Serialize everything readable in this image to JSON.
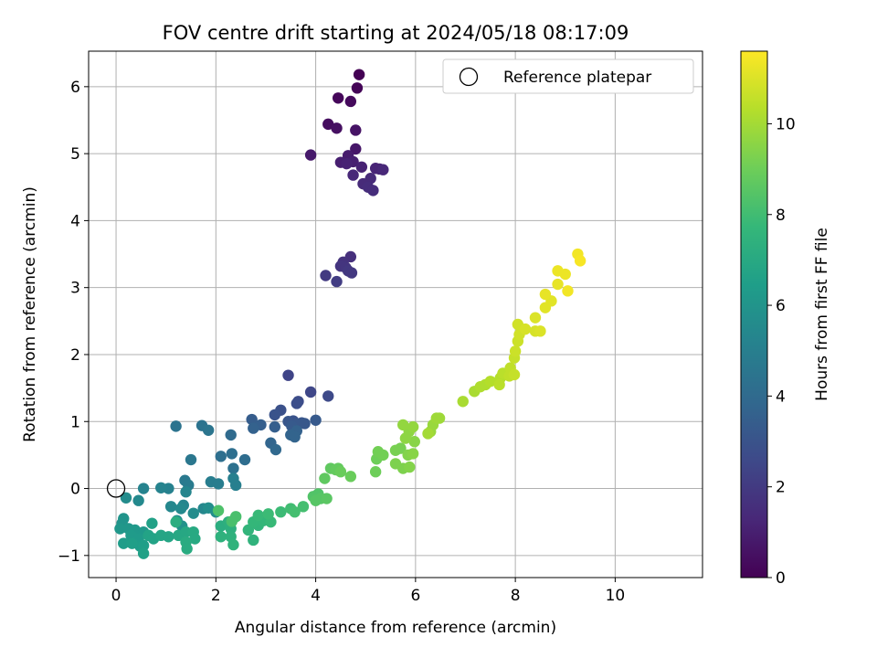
{
  "chart_data": {
    "type": "scatter",
    "title": "FOV centre drift starting at 2024/05/18 08:17:09",
    "xlabel": "Angular distance from reference (arcmin)",
    "ylabel": "Rotation from reference (arcmin)",
    "xlim": [
      -0.55,
      11.75
    ],
    "ylim": [
      -1.33,
      6.53
    ],
    "xticks": [
      0,
      2,
      4,
      6,
      8,
      10
    ],
    "yticks": [
      -1,
      0,
      1,
      2,
      3,
      4,
      5,
      6
    ],
    "grid": true,
    "legend": {
      "location": "upper right",
      "entries": [
        {
          "label": "Reference platepar",
          "marker": "open-circle"
        }
      ]
    },
    "reference_point": {
      "x": 0,
      "y": 0
    },
    "colorbar": {
      "label": "Hours from first FF file",
      "range": [
        0,
        11.6
      ],
      "ticks": [
        0,
        2,
        4,
        6,
        8,
        10
      ],
      "colormap": "viridis",
      "stops": [
        "#440154",
        "#482878",
        "#3e4989",
        "#31688e",
        "#26828e",
        "#1f9e89",
        "#35b779",
        "#6ece58",
        "#b5de2b",
        "#fde725"
      ]
    },
    "points": [
      [
        4.87,
        6.18,
        0.0
      ],
      [
        4.83,
        5.98,
        0.1
      ],
      [
        4.45,
        5.83,
        0.2
      ],
      [
        4.7,
        5.78,
        0.3
      ],
      [
        4.25,
        5.44,
        0.4
      ],
      [
        4.42,
        5.38,
        0.5
      ],
      [
        4.8,
        5.35,
        0.6
      ],
      [
        4.8,
        5.07,
        0.7
      ],
      [
        3.9,
        4.98,
        0.8
      ],
      [
        4.65,
        4.97,
        0.9
      ],
      [
        4.75,
        4.88,
        1.0
      ],
      [
        4.5,
        4.87,
        1.0
      ],
      [
        4.62,
        4.85,
        1.1
      ],
      [
        4.92,
        4.8,
        1.1
      ],
      [
        5.2,
        4.78,
        1.2
      ],
      [
        5.28,
        4.77,
        1.2
      ],
      [
        5.35,
        4.76,
        1.3
      ],
      [
        4.75,
        4.68,
        1.3
      ],
      [
        5.1,
        4.63,
        1.4
      ],
      [
        4.95,
        4.55,
        1.4
      ],
      [
        5.05,
        4.5,
        1.5
      ],
      [
        5.15,
        4.45,
        1.5
      ],
      [
        4.7,
        3.46,
        1.6
      ],
      [
        4.55,
        3.38,
        1.7
      ],
      [
        4.5,
        3.32,
        1.8
      ],
      [
        4.6,
        3.3,
        1.8
      ],
      [
        4.65,
        3.25,
        1.9
      ],
      [
        4.72,
        3.22,
        1.9
      ],
      [
        4.2,
        3.18,
        2.0
      ],
      [
        4.42,
        3.09,
        2.1
      ],
      [
        3.45,
        1.69,
        2.4
      ],
      [
        3.9,
        1.44,
        2.5
      ],
      [
        4.25,
        1.38,
        2.6
      ],
      [
        3.65,
        1.3,
        2.7
      ],
      [
        3.62,
        1.27,
        2.8
      ],
      [
        3.3,
        1.17,
        2.9
      ],
      [
        3.18,
        1.1,
        3.0
      ],
      [
        3.55,
        1.01,
        3.0
      ],
      [
        3.45,
        1.0,
        3.1
      ],
      [
        3.72,
        0.98,
        3.1
      ],
      [
        3.62,
        0.96,
        3.2
      ],
      [
        3.78,
        0.97,
        3.2
      ],
      [
        3.52,
        0.93,
        3.3
      ],
      [
        4.0,
        1.02,
        3.3
      ],
      [
        2.72,
        1.03,
        3.4
      ],
      [
        2.9,
        0.95,
        3.5
      ],
      [
        3.18,
        0.92,
        3.5
      ],
      [
        2.75,
        0.9,
        3.6
      ],
      [
        3.62,
        0.86,
        3.6
      ],
      [
        3.5,
        0.8,
        3.7
      ],
      [
        3.58,
        0.77,
        3.7
      ],
      [
        3.1,
        0.68,
        3.8
      ],
      [
        3.2,
        0.58,
        3.9
      ],
      [
        2.3,
        0.8,
        4.0
      ],
      [
        2.58,
        0.43,
        4.1
      ],
      [
        2.32,
        0.52,
        4.2
      ],
      [
        2.1,
        0.48,
        4.2
      ],
      [
        2.35,
        0.3,
        4.3
      ],
      [
        1.2,
        0.93,
        4.4
      ],
      [
        1.72,
        0.94,
        4.4
      ],
      [
        1.85,
        0.87,
        4.5
      ],
      [
        1.5,
        0.43,
        4.6
      ],
      [
        1.38,
        0.12,
        4.7
      ],
      [
        1.45,
        0.05,
        4.8
      ],
      [
        1.9,
        0.1,
        4.9
      ],
      [
        2.05,
        0.07,
        4.9
      ],
      [
        2.35,
        0.15,
        5.0
      ],
      [
        2.4,
        0.05,
        5.0
      ],
      [
        1.05,
        0.0,
        5.1
      ],
      [
        0.9,
        0.01,
        5.2
      ],
      [
        0.55,
        0.0,
        5.2
      ],
      [
        1.4,
        -0.05,
        5.3
      ],
      [
        1.35,
        -0.25,
        5.3
      ],
      [
        1.1,
        -0.27,
        5.4
      ],
      [
        1.75,
        -0.3,
        5.4
      ],
      [
        1.3,
        -0.3,
        5.5
      ],
      [
        0.45,
        -0.18,
        5.5
      ],
      [
        0.2,
        -0.14,
        5.6
      ],
      [
        1.55,
        -0.37,
        5.6
      ],
      [
        1.85,
        -0.29,
        5.7
      ],
      [
        2.0,
        -0.35,
        5.7
      ],
      [
        1.22,
        -0.48,
        5.8
      ],
      [
        1.32,
        -0.56,
        5.9
      ],
      [
        0.15,
        -0.45,
        6.0
      ],
      [
        0.12,
        -0.52,
        6.0
      ],
      [
        0.08,
        -0.6,
        6.1
      ],
      [
        0.25,
        -0.6,
        6.1
      ],
      [
        0.38,
        -0.62,
        6.2
      ],
      [
        0.55,
        -0.65,
        6.2
      ],
      [
        0.3,
        -0.7,
        6.3
      ],
      [
        0.45,
        -0.75,
        6.3
      ],
      [
        0.48,
        -0.86,
        6.4
      ],
      [
        0.15,
        -0.82,
        6.4
      ],
      [
        0.32,
        -0.82,
        6.5
      ],
      [
        0.55,
        -0.85,
        6.5
      ],
      [
        0.55,
        -0.97,
        6.6
      ],
      [
        0.72,
        -0.52,
        6.6
      ],
      [
        0.65,
        -0.7,
        6.7
      ],
      [
        0.75,
        -0.75,
        6.7
      ],
      [
        0.9,
        -0.7,
        6.8
      ],
      [
        1.05,
        -0.72,
        6.8
      ],
      [
        1.25,
        -0.7,
        6.9
      ],
      [
        1.4,
        -0.65,
        6.9
      ],
      [
        1.55,
        -0.65,
        7.0
      ],
      [
        1.58,
        -0.75,
        7.0
      ],
      [
        1.4,
        -0.8,
        7.1
      ],
      [
        1.42,
        -0.9,
        7.1
      ],
      [
        1.2,
        -0.5,
        7.2
      ],
      [
        2.1,
        -0.56,
        7.2
      ],
      [
        2.25,
        -0.5,
        7.3
      ],
      [
        2.3,
        -0.6,
        7.3
      ],
      [
        2.1,
        -0.72,
        7.4
      ],
      [
        2.3,
        -0.72,
        7.4
      ],
      [
        2.35,
        -0.84,
        7.5
      ],
      [
        2.75,
        -0.77,
        7.5
      ],
      [
        2.65,
        -0.62,
        7.6
      ],
      [
        2.85,
        -0.55,
        7.6
      ],
      [
        2.75,
        -0.5,
        7.7
      ],
      [
        2.95,
        -0.48,
        7.7
      ],
      [
        3.1,
        -0.5,
        7.8
      ],
      [
        2.85,
        -0.4,
        7.8
      ],
      [
        3.05,
        -0.38,
        7.9
      ],
      [
        3.3,
        -0.35,
        7.9
      ],
      [
        3.5,
        -0.3,
        8.0
      ],
      [
        3.75,
        -0.27,
        8.1
      ],
      [
        3.58,
        -0.35,
        8.1
      ],
      [
        2.4,
        -0.42,
        8.2
      ],
      [
        2.32,
        -0.49,
        8.2
      ],
      [
        2.05,
        -0.33,
        8.3
      ],
      [
        3.95,
        -0.12,
        8.4
      ],
      [
        4.05,
        -0.08,
        8.4
      ],
      [
        4.1,
        -0.15,
        8.5
      ],
      [
        4.0,
        -0.18,
        8.5
      ],
      [
        4.22,
        -0.15,
        8.6
      ],
      [
        4.18,
        0.15,
        8.7
      ],
      [
        4.3,
        0.3,
        8.7
      ],
      [
        4.4,
        0.28,
        8.8
      ],
      [
        4.45,
        0.3,
        8.8
      ],
      [
        4.5,
        0.25,
        8.9
      ],
      [
        4.7,
        0.18,
        8.9
      ],
      [
        5.2,
        0.25,
        9.0
      ],
      [
        5.22,
        0.44,
        9.0
      ],
      [
        5.25,
        0.55,
        9.1
      ],
      [
        5.35,
        0.5,
        9.1
      ],
      [
        5.6,
        0.57,
        9.2
      ],
      [
        5.7,
        0.6,
        9.2
      ],
      [
        5.6,
        0.37,
        9.3
      ],
      [
        5.75,
        0.3,
        9.3
      ],
      [
        5.88,
        0.32,
        9.4
      ],
      [
        5.85,
        0.5,
        9.4
      ],
      [
        5.95,
        0.52,
        9.5
      ],
      [
        5.98,
        0.7,
        9.5
      ],
      [
        5.8,
        0.75,
        9.6
      ],
      [
        5.87,
        0.85,
        9.6
      ],
      [
        5.95,
        0.92,
        9.7
      ],
      [
        5.75,
        0.95,
        9.7
      ],
      [
        6.3,
        0.85,
        9.8
      ],
      [
        6.35,
        0.95,
        9.8
      ],
      [
        6.48,
        1.05,
        9.9
      ],
      [
        6.42,
        1.05,
        9.9
      ],
      [
        6.25,
        0.82,
        10.0
      ],
      [
        6.95,
        1.3,
        10.1
      ],
      [
        7.18,
        1.45,
        10.1
      ],
      [
        7.3,
        1.52,
        10.2
      ],
      [
        7.4,
        1.55,
        10.2
      ],
      [
        7.5,
        1.6,
        10.3
      ],
      [
        7.7,
        1.65,
        10.3
      ],
      [
        7.68,
        1.55,
        10.4
      ],
      [
        7.75,
        1.72,
        10.4
      ],
      [
        7.9,
        1.8,
        10.5
      ],
      [
        7.88,
        1.68,
        10.5
      ],
      [
        7.98,
        1.7,
        10.6
      ],
      [
        7.98,
        1.95,
        10.6
      ],
      [
        8.0,
        2.05,
        10.7
      ],
      [
        8.05,
        2.2,
        10.7
      ],
      [
        8.08,
        2.3,
        10.8
      ],
      [
        8.05,
        2.45,
        10.8
      ],
      [
        8.2,
        2.38,
        10.9
      ],
      [
        8.4,
        2.35,
        10.9
      ],
      [
        8.5,
        2.35,
        11.0
      ],
      [
        8.4,
        2.55,
        11.0
      ],
      [
        8.6,
        2.7,
        11.1
      ],
      [
        8.72,
        2.8,
        11.1
      ],
      [
        8.6,
        2.9,
        11.2
      ],
      [
        8.85,
        3.05,
        11.2
      ],
      [
        8.85,
        3.25,
        11.3
      ],
      [
        9.0,
        3.2,
        11.3
      ],
      [
        9.05,
        2.95,
        11.4
      ],
      [
        9.25,
        3.5,
        11.4
      ],
      [
        9.3,
        3.4,
        11.5
      ]
    ]
  }
}
